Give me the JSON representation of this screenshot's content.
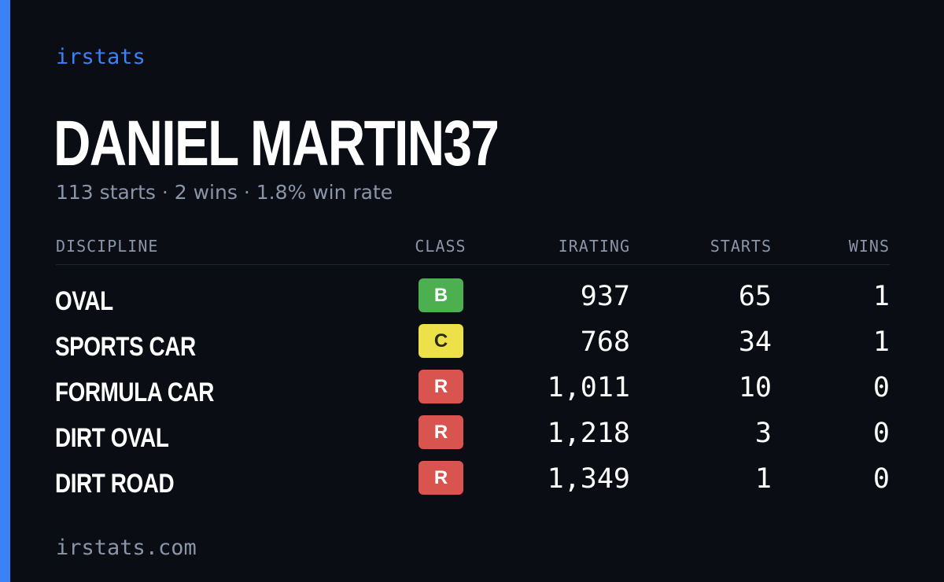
{
  "brand": "irstats",
  "driver": {
    "name": "DANIEL MARTIN37",
    "summary": "113 starts · 2 wins · 1.8% win rate"
  },
  "table": {
    "headers": {
      "discipline": "DISCIPLINE",
      "class": "CLASS",
      "irating": "IRATING",
      "starts": "STARTS",
      "wins": "WINS"
    },
    "rows": [
      {
        "discipline": "OVAL",
        "class": "B",
        "class_color": "#4caf50",
        "class_text_color": "#ffffff",
        "irating": "937",
        "starts": "65",
        "wins": "1"
      },
      {
        "discipline": "SPORTS CAR",
        "class": "C",
        "class_color": "#ede14a",
        "class_text_color": "#2a2a10",
        "irating": "768",
        "starts": "34",
        "wins": "1"
      },
      {
        "discipline": "FORMULA CAR",
        "class": "R",
        "class_color": "#d9534f",
        "class_text_color": "#ffffff",
        "irating": "1,011",
        "starts": "10",
        "wins": "0"
      },
      {
        "discipline": "DIRT OVAL",
        "class": "R",
        "class_color": "#d9534f",
        "class_text_color": "#ffffff",
        "irating": "1,218",
        "starts": "3",
        "wins": "0"
      },
      {
        "discipline": "DIRT ROAD",
        "class": "R",
        "class_color": "#d9534f",
        "class_text_color": "#ffffff",
        "irating": "1,349",
        "starts": "1",
        "wins": "0"
      }
    ]
  },
  "footer": "irstats.com",
  "colors": {
    "background": "#0a0d14",
    "accent": "#3b82f6",
    "muted": "#8b95a8"
  }
}
